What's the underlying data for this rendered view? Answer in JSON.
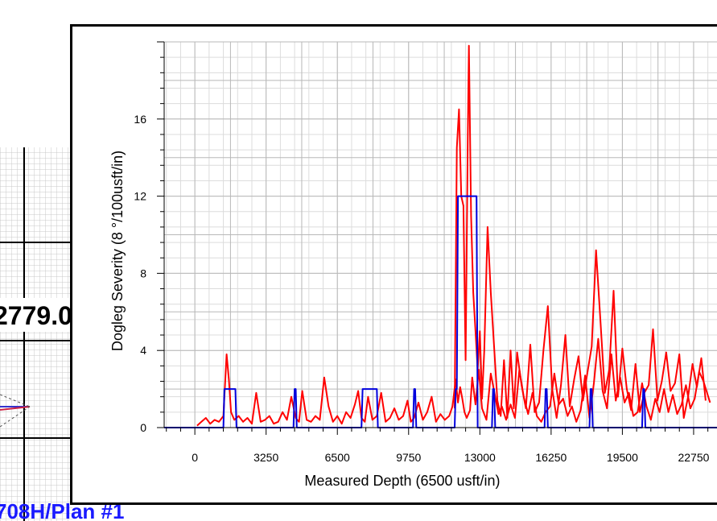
{
  "background": {
    "depth_fragment": "2779.0",
    "well_fragment": "708H/Plan #1"
  },
  "chart_data": {
    "type": "line",
    "title": "",
    "xlabel": "Measured Depth (6500 usft/in)",
    "ylabel": "Dogleg Severity (8 °/100usft/in)",
    "xlim": [
      -1400,
      24000
    ],
    "ylim": [
      0,
      20
    ],
    "xticks": [
      0,
      3250,
      6500,
      9750,
      13000,
      16250,
      19500,
      22750
    ],
    "yticks": [
      0,
      4,
      8,
      12,
      16
    ],
    "grid": true,
    "colors": {
      "actual": "#ff0000",
      "plan": "#0000dd",
      "grid": "#b8b8b8"
    },
    "series": [
      {
        "name": "",
        "color": "#ff0000",
        "x": [
          100,
          300,
          500,
          700,
          900,
          1100,
          1300,
          1450,
          1550,
          1650,
          1800,
          2000,
          2200,
          2400,
          2600,
          2800,
          3000,
          3200,
          3400,
          3600,
          3800,
          4000,
          4200,
          4400,
          4600,
          4750,
          4900,
          5100,
          5300,
          5500,
          5700,
          5900,
          6100,
          6300,
          6500,
          6700,
          6900,
          7100,
          7300,
          7450,
          7600,
          7750,
          7900,
          8100,
          8300,
          8500,
          8700,
          8900,
          9100,
          9300,
          9500,
          9700,
          9850,
          10000,
          10200,
          10400,
          10600,
          10800,
          11000,
          11200,
          11400,
          11600,
          11750,
          11900,
          12000,
          12100,
          12200,
          12300,
          12400,
          12550,
          12650,
          12800,
          12950,
          13100,
          13300,
          13500,
          13700,
          13850,
          14000,
          14200,
          14400,
          14600,
          14800,
          15000,
          15200,
          15400,
          15600,
          15800,
          16000,
          16200,
          16400,
          16600,
          16800,
          17000,
          17200,
          17400,
          17600,
          17800,
          18000,
          18200,
          18400,
          18600,
          18800,
          19000,
          19200,
          19400,
          19600,
          19800,
          20000,
          20200,
          20400,
          20600,
          20800,
          21000,
          21200,
          21400,
          21600,
          21800,
          22000,
          22200,
          22400,
          22600,
          22800,
          23000,
          23200,
          23500
        ],
        "y": [
          0.1,
          0.3,
          0.5,
          0.2,
          0.4,
          0.3,
          0.6,
          3.8,
          2.5,
          0.8,
          0.4,
          0.6,
          0.3,
          0.5,
          0.2,
          1.8,
          0.3,
          0.4,
          0.6,
          0.2,
          0.3,
          0.8,
          0.4,
          1.6,
          0.5,
          0.3,
          1.9,
          0.4,
          0.3,
          0.6,
          0.4,
          2.6,
          1.1,
          0.3,
          0.6,
          0.2,
          0.8,
          0.5,
          1.2,
          1.9,
          0.5,
          0.3,
          1.6,
          0.4,
          0.6,
          1.8,
          0.3,
          0.5,
          1.0,
          0.4,
          0.6,
          1.4,
          0.3,
          0.5,
          1.3,
          0.4,
          0.8,
          1.6,
          0.3,
          0.7,
          0.4,
          0.6,
          1.1,
          2.5,
          1.3,
          2.1,
          1.5,
          0.8,
          0.5,
          0.9,
          2.6,
          1.2,
          3.0,
          1.0,
          0.4,
          2.8,
          1.6,
          0.7,
          1.1,
          0.4,
          1.2,
          0.5,
          3.0,
          1.6,
          0.7,
          1.8,
          0.6,
          0.3,
          0.8,
          1.1,
          2.8,
          1.2,
          1.5,
          0.6,
          1.1,
          0.3,
          0.9,
          2.7,
          0.5,
          2.3,
          4.6,
          1.9,
          1.0,
          3.8,
          1.4,
          2.6,
          1.3,
          1.8,
          0.6,
          0.8,
          2.3,
          1.1,
          0.4,
          1.5,
          0.8,
          2.0,
          0.8,
          1.7,
          0.7,
          1.2,
          2.2,
          1.0,
          1.5,
          2.9,
          2.4,
          1.3
        ]
      },
      {
        "name": "",
        "color": "#ff0000",
        "x": [
          11850,
          11950,
          12050,
          12150,
          12250,
          12350,
          12450,
          12500,
          12600,
          12700,
          12800,
          12900,
          13000,
          13100,
          13200,
          13350,
          13500,
          13650,
          13800,
          13950,
          14100,
          14250,
          14400,
          14550,
          14700,
          14900,
          15100,
          15300,
          15500,
          15700,
          15900,
          16100,
          16300,
          16500,
          16700,
          16900,
          17100,
          17300,
          17500,
          17700,
          17900,
          18100,
          18300,
          18500,
          18700,
          18900,
          19100,
          19300,
          19500,
          19700,
          19900,
          20100,
          20300,
          20500,
          20700,
          20900,
          21100,
          21300,
          21500,
          21700,
          21900,
          22100,
          22300,
          22500,
          22700,
          22900,
          23100,
          23300
        ],
        "y": [
          1.0,
          14.5,
          16.5,
          12.0,
          11.5,
          3.5,
          15.0,
          19.8,
          11.0,
          7.0,
          5.0,
          3.0,
          5.0,
          1.5,
          4.0,
          10.4,
          7.0,
          4.2,
          1.4,
          0.6,
          3.5,
          0.5,
          4.0,
          1.0,
          3.9,
          2.2,
          1.0,
          4.3,
          0.8,
          1.3,
          4.0,
          6.3,
          2.0,
          0.5,
          2.2,
          4.8,
          1.1,
          2.5,
          3.7,
          1.4,
          2.8,
          4.2,
          9.2,
          5.5,
          1.8,
          3.0,
          7.1,
          1.6,
          4.1,
          2.0,
          0.9,
          3.3,
          0.8,
          1.8,
          2.2,
          5.1,
          1.4,
          2.4,
          3.9,
          1.9,
          2.3,
          3.8,
          0.5,
          1.6,
          3.3,
          2.1,
          3.6,
          1.4
        ]
      },
      {
        "name": "",
        "color": "#0000dd",
        "x": [
          -1400,
          1300,
          1350,
          1850,
          1900,
          4500,
          4550,
          4600,
          4650,
          7600,
          7650,
          8300,
          8350,
          9950,
          10000,
          10050,
          10100,
          11850,
          11900,
          11950,
          12000,
          12850,
          12900,
          13000,
          13050,
          13550,
          13600,
          13650,
          13700,
          15950,
          16000,
          16050,
          16100,
          18000,
          18050,
          18100,
          18150,
          20400,
          20450,
          20500,
          20550,
          24000
        ],
        "y": [
          0,
          0,
          2,
          2,
          0,
          0,
          2,
          2,
          0,
          0,
          2,
          2,
          0,
          0,
          2,
          2,
          0,
          0,
          2,
          2,
          12,
          12,
          0,
          0,
          0,
          0,
          2,
          2,
          0,
          0,
          2,
          2,
          0,
          0,
          2,
          2,
          0,
          0,
          2,
          2,
          0,
          0
        ]
      }
    ]
  }
}
